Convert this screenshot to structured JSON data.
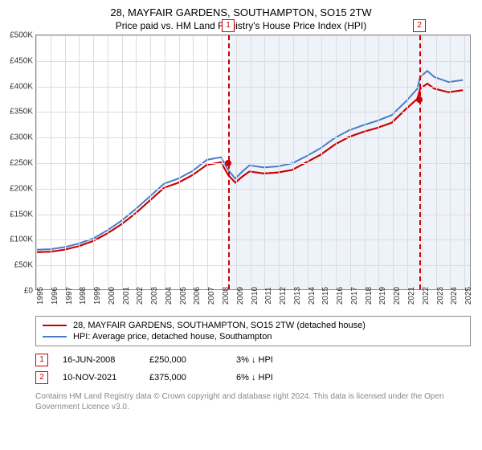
{
  "title": "28, MAYFAIR GARDENS, SOUTHAMPTON, SO15 2TW",
  "subtitle": "Price paid vs. HM Land Registry's House Price Index (HPI)",
  "chart": {
    "type": "line",
    "background_color": "#ffffff",
    "grid_color": "#dcdcdc",
    "shade_color": "#eef2f9",
    "ylim": [
      0,
      500000
    ],
    "ytick_step": 50000,
    "yticks": [
      "£0",
      "£50K",
      "£100K",
      "£150K",
      "£200K",
      "£250K",
      "£300K",
      "£350K",
      "£400K",
      "£450K",
      "£500K"
    ],
    "xlim": [
      1995,
      2025.5
    ],
    "xticks": [
      "1995",
      "1996",
      "1997",
      "1998",
      "1999",
      "2000",
      "2001",
      "2002",
      "2003",
      "2004",
      "2005",
      "2006",
      "2007",
      "2008",
      "2009",
      "2010",
      "2011",
      "2012",
      "2013",
      "2014",
      "2015",
      "2016",
      "2017",
      "2018",
      "2019",
      "2020",
      "2021",
      "2022",
      "2023",
      "2024",
      "2025"
    ],
    "series": [
      {
        "name": "property",
        "label": "28, MAYFAIR GARDENS, SOUTHAMPTON, SO15 2TW (detached house)",
        "color": "#cc0000",
        "width": 2,
        "data": [
          [
            1995,
            73000
          ],
          [
            1996,
            74000
          ],
          [
            1997,
            78000
          ],
          [
            1998,
            85000
          ],
          [
            1999,
            95000
          ],
          [
            2000,
            110000
          ],
          [
            2001,
            128000
          ],
          [
            2002,
            150000
          ],
          [
            2003,
            175000
          ],
          [
            2004,
            200000
          ],
          [
            2005,
            210000
          ],
          [
            2006,
            225000
          ],
          [
            2007,
            245000
          ],
          [
            2008,
            250000
          ],
          [
            2008.5,
            225000
          ],
          [
            2009,
            210000
          ],
          [
            2009.5,
            222000
          ],
          [
            2010,
            232000
          ],
          [
            2011,
            228000
          ],
          [
            2012,
            230000
          ],
          [
            2013,
            235000
          ],
          [
            2014,
            250000
          ],
          [
            2015,
            265000
          ],
          [
            2016,
            285000
          ],
          [
            2017,
            300000
          ],
          [
            2018,
            310000
          ],
          [
            2019,
            318000
          ],
          [
            2020,
            328000
          ],
          [
            2021,
            355000
          ],
          [
            2021.8,
            375000
          ],
          [
            2022,
            395000
          ],
          [
            2022.5,
            405000
          ],
          [
            2023,
            395000
          ],
          [
            2024,
            388000
          ],
          [
            2025,
            392000
          ]
        ]
      },
      {
        "name": "hpi",
        "label": "HPI: Average price, detached house, Southampton",
        "color": "#4a7bc8",
        "width": 2,
        "data": [
          [
            1995,
            78000
          ],
          [
            1996,
            79000
          ],
          [
            1997,
            83000
          ],
          [
            1998,
            90000
          ],
          [
            1999,
            100000
          ],
          [
            2000,
            116000
          ],
          [
            2001,
            135000
          ],
          [
            2002,
            158000
          ],
          [
            2003,
            183000
          ],
          [
            2004,
            208000
          ],
          [
            2005,
            218000
          ],
          [
            2006,
            233000
          ],
          [
            2007,
            255000
          ],
          [
            2008,
            260000
          ],
          [
            2008.5,
            235000
          ],
          [
            2009,
            218000
          ],
          [
            2009.5,
            232000
          ],
          [
            2010,
            244000
          ],
          [
            2011,
            240000
          ],
          [
            2012,
            242000
          ],
          [
            2013,
            248000
          ],
          [
            2014,
            262000
          ],
          [
            2015,
            278000
          ],
          [
            2016,
            298000
          ],
          [
            2017,
            313000
          ],
          [
            2018,
            323000
          ],
          [
            2019,
            332000
          ],
          [
            2020,
            343000
          ],
          [
            2021,
            370000
          ],
          [
            2021.8,
            395000
          ],
          [
            2022,
            418000
          ],
          [
            2022.5,
            430000
          ],
          [
            2023,
            418000
          ],
          [
            2024,
            408000
          ],
          [
            2025,
            412000
          ]
        ]
      }
    ],
    "markers": [
      {
        "id": "1",
        "date_x": 2008.45,
        "date_label": "16-JUN-2008",
        "price": "£250,000",
        "price_y": 250000,
        "delta": "3% ↓ HPI"
      },
      {
        "id": "2",
        "date_x": 2021.85,
        "date_label": "10-NOV-2021",
        "price": "£375,000",
        "price_y": 375000,
        "delta": "6% ↓ HPI"
      }
    ],
    "shade_from_x": 2008.45
  },
  "footnote": "Contains HM Land Registry data © Crown copyright and database right 2024. This data is licensed under the Open Government Licence v3.0."
}
